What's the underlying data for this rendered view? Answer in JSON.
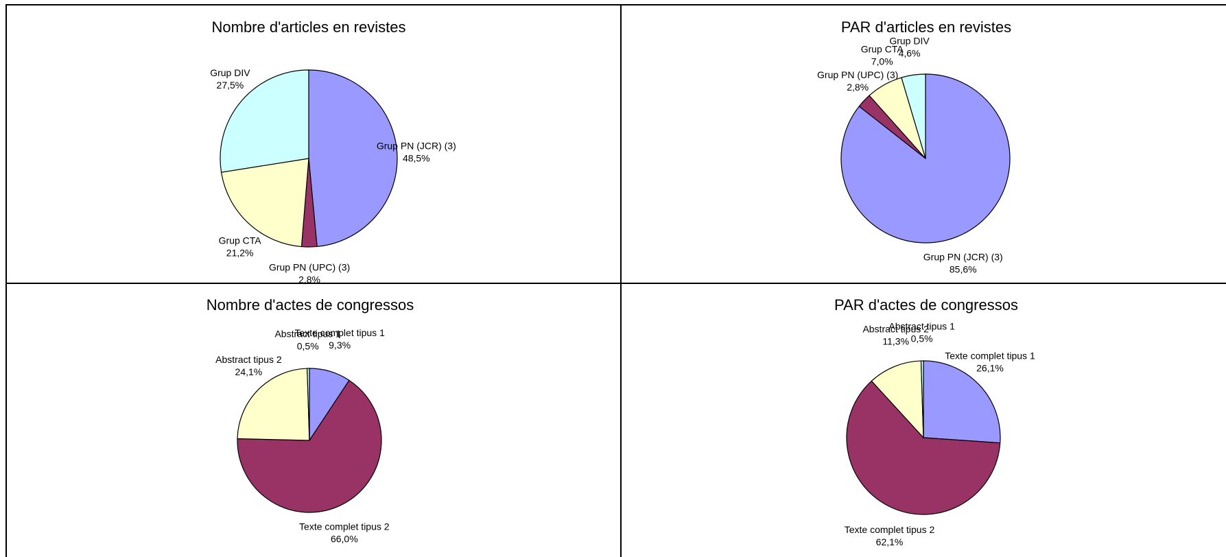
{
  "chart_data": [
    {
      "type": "pie",
      "title": "Nombre d'articles en revistes",
      "categories": [
        "Grup PN (JCR) (3)",
        "Grup PN (UPC) (3)",
        "Grup CTA",
        "Grup DIV"
      ],
      "values": [
        48.5,
        2.8,
        21.2,
        27.5
      ],
      "value_labels": [
        "48,5%",
        "2,8%",
        "21,2%",
        "27,5%"
      ],
      "colors": [
        "#9999ff",
        "#993366",
        "#ffffcc",
        "#ccffff"
      ]
    },
    {
      "type": "pie",
      "title": "PAR d'articles en revistes",
      "categories": [
        "Grup PN (JCR) (3)",
        "Grup PN (UPC) (3)",
        "Grup CTA",
        "Grup DIV"
      ],
      "values": [
        85.6,
        2.8,
        7.0,
        4.6
      ],
      "value_labels": [
        "85,6%",
        "2,8%",
        "7,0%",
        "4,6%"
      ],
      "colors": [
        "#9999ff",
        "#993366",
        "#ffffcc",
        "#ccffff"
      ]
    },
    {
      "type": "pie",
      "title": "Nombre d'actes de congressos",
      "categories": [
        "Texte complet tipus 1",
        "Texte complet tipus 2",
        "Abstract tipus 2",
        "Abstract tipus 1"
      ],
      "values": [
        9.3,
        66.0,
        24.1,
        0.5
      ],
      "value_labels": [
        "9,3%",
        "66,0%",
        "24,1%",
        "0,5%"
      ],
      "colors": [
        "#9999ff",
        "#993366",
        "#ffffcc",
        "#ccffff"
      ]
    },
    {
      "type": "pie",
      "title": "PAR d'actes de congressos",
      "categories": [
        "Texte complet tipus 1",
        "Texte complet tipus 2",
        "Abstract tipus 2",
        "Abstract tipus 1"
      ],
      "values": [
        26.1,
        62.1,
        11.3,
        0.5
      ],
      "value_labels": [
        "26,1%",
        "62,1%",
        "11,3%",
        "0,5%"
      ],
      "colors": [
        "#9999ff",
        "#993366",
        "#ffffcc",
        "#ccffff"
      ]
    }
  ]
}
